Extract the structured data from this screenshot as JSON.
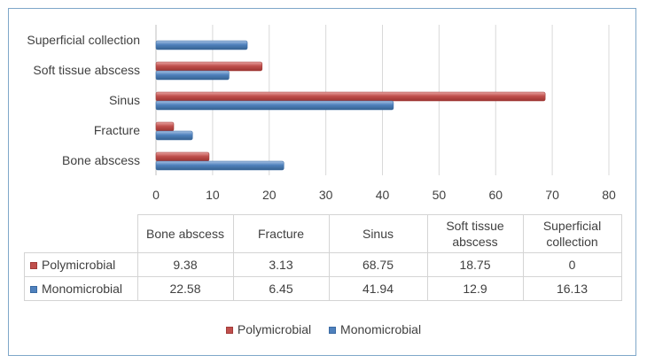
{
  "chart_data": {
    "type": "bar",
    "orientation": "horizontal",
    "categories": [
      "Bone abscess",
      "Fracture",
      "Sinus",
      "Soft tissue abscess",
      "Superficial collection"
    ],
    "table_headers": [
      "Bone abscess",
      "Fracture",
      "Sinus",
      "Soft tissue\nabscess",
      "Superficial\ncollection"
    ],
    "series": [
      {
        "name": "Polymicrobial",
        "values": [
          9.38,
          3.13,
          68.75,
          18.75,
          0
        ],
        "labels": [
          "9.38",
          "3.13",
          "68.75",
          "18.75",
          "0"
        ],
        "color": "#c0504d"
      },
      {
        "name": "Monomicrobial",
        "values": [
          22.58,
          6.45,
          41.94,
          12.9,
          16.13
        ],
        "labels": [
          "22.58",
          "6.45",
          "41.94",
          "12.9",
          "16.13"
        ],
        "color": "#4f81bd"
      }
    ],
    "x_ticks": [
      "0",
      "10",
      "20",
      "30",
      "40",
      "50",
      "60",
      "70",
      "80"
    ],
    "xlim": [
      0,
      80
    ],
    "grid": true,
    "legend_position": "bottom",
    "data_table": true
  }
}
